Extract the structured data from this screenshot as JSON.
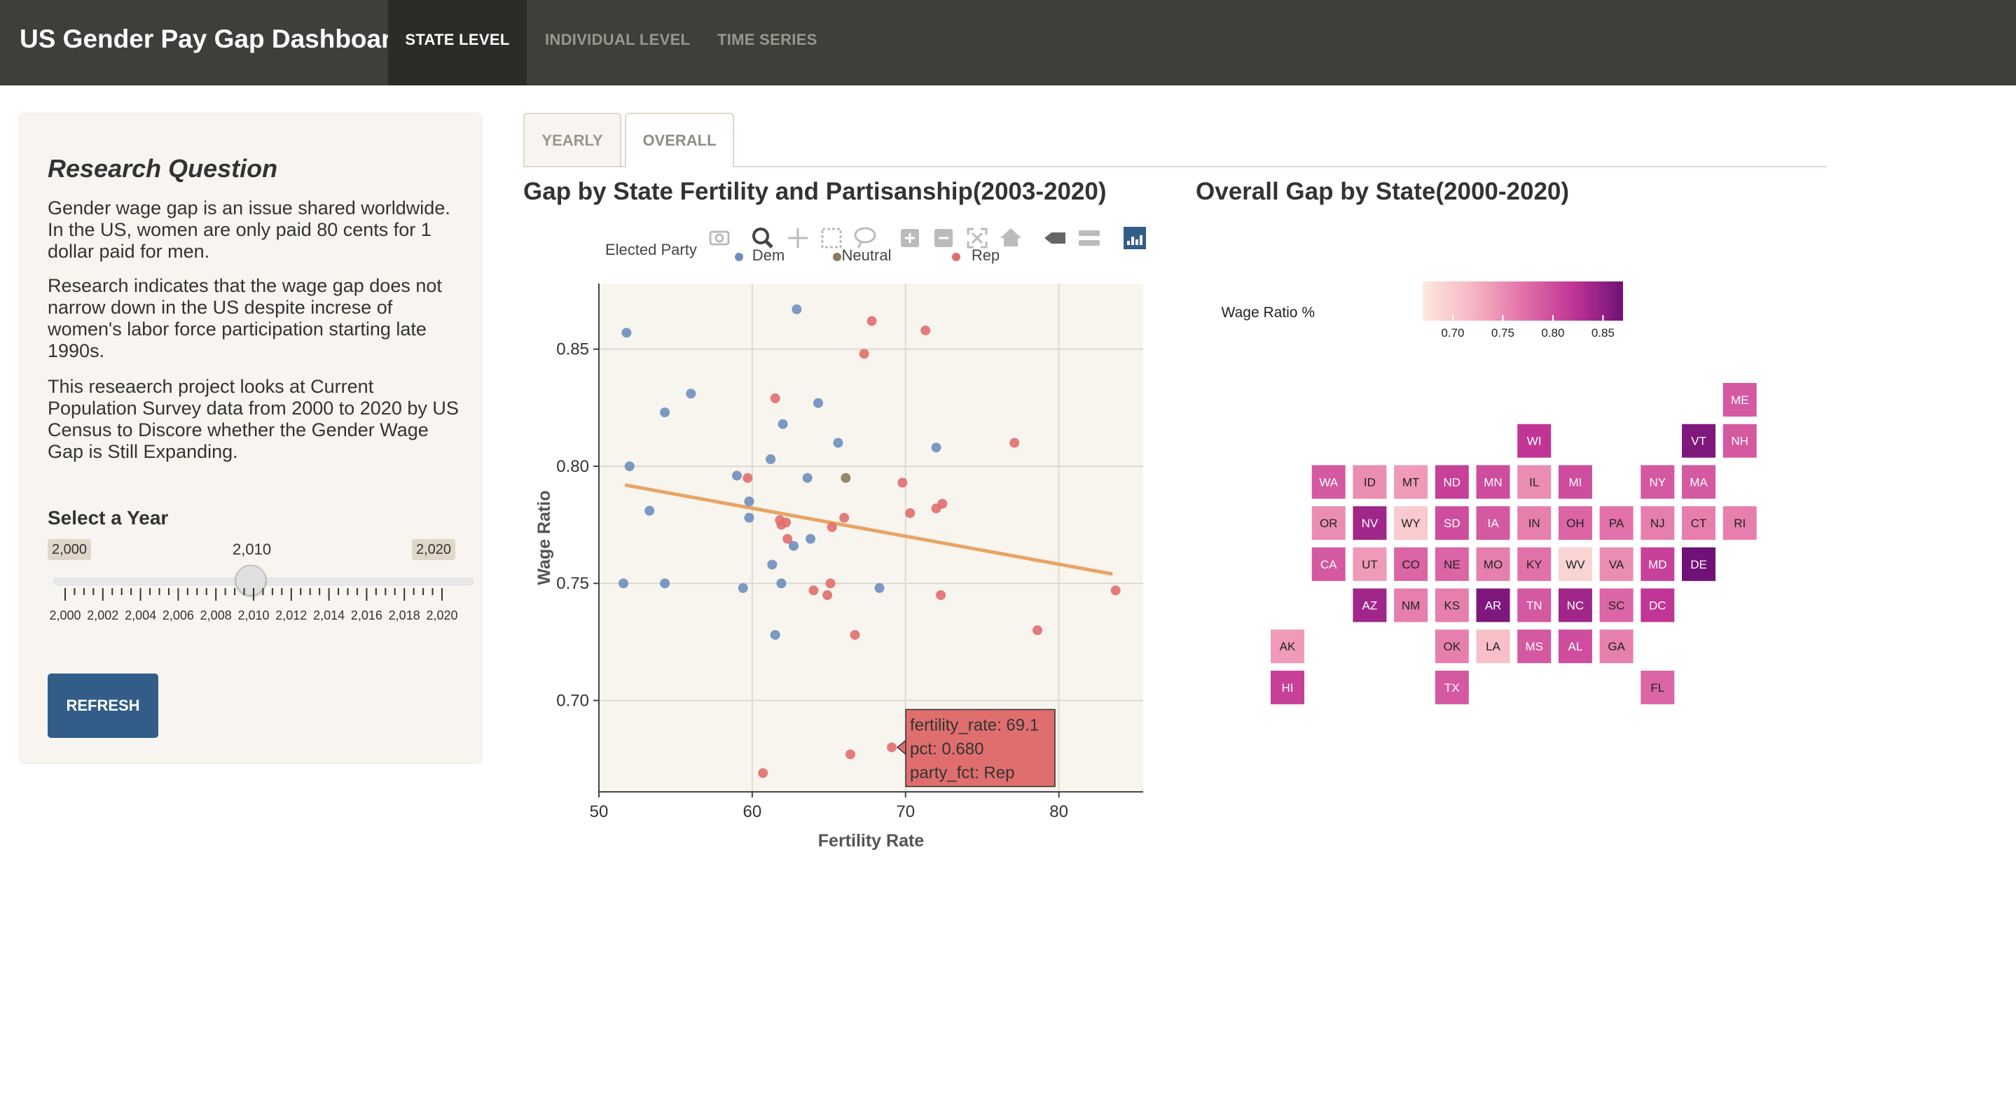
{
  "app": {
    "title": "US Gender Pay Gap Dashboard",
    "nav": [
      "STATE LEVEL",
      "INDIVIDUAL LEVEL",
      "TIME SERIES"
    ],
    "active_nav": "STATE LEVEL"
  },
  "sidebar": {
    "title": "Research Question",
    "paragraphs": [
      "Gender wage gap is an issue shared worldwide. In the US, women are only paid 80 cents for 1 dollar paid for men.",
      "Research indicates that the wage gap does not narrow down in the US despite increse of women's labor force participation starting late 1990s.",
      "This reseaerch project looks at Current Population Survey data from 2000 to 2020 by US Census to Discore whether the Gender Wage Gap is Still Expanding."
    ],
    "year_label": "Select a Year",
    "slider": {
      "min_label": "2,000",
      "max_label": "2,020",
      "value_label": "2,010",
      "min": 2000,
      "max": 2020,
      "value": 2010,
      "tick_labels": [
        "2,000",
        "2,002",
        "2,004",
        "2,006",
        "2,008",
        "2,010",
        "2,012",
        "2,014",
        "2,016",
        "2,018",
        "2,020"
      ]
    },
    "refresh_label": "REFRESH"
  },
  "tabs": [
    "YEARLY",
    "OVERALL"
  ],
  "active_tab": "OVERALL",
  "colors": {
    "Dem": "#6d8fbd",
    "Neutral": "#8b7a5e",
    "Rep": "#e06e6e",
    "trend": "#e8a465",
    "plot_bg": "#f7f5ee",
    "accent": "#325d88"
  },
  "chart_data": [
    {
      "type": "scatter",
      "title": "Gap by State Fertility and Partisanship(2003-2020)",
      "xlabel": "Fertility Rate",
      "ylabel": "Wage Ratio",
      "xlim": [
        50,
        85.5
      ],
      "ylim": [
        0.661,
        0.878
      ],
      "xticks": [
        50,
        60,
        70,
        80
      ],
      "yticks": [
        0.7,
        0.75,
        0.8,
        0.85
      ],
      "ytick_labels": [
        "0.70",
        "0.75",
        "0.80",
        "0.85"
      ],
      "grid": true,
      "legend_title": "Elected Party",
      "legend": [
        "Dem",
        "Neutral",
        "Rep"
      ],
      "trend_line": [
        [
          51.7,
          0.792
        ],
        [
          83.5,
          0.754
        ]
      ],
      "series": [
        {
          "name": "Dem",
          "points": [
            [
              51.8,
              0.857
            ],
            [
              52.0,
              0.8
            ],
            [
              53.3,
              0.781
            ],
            [
              54.3,
              0.823
            ],
            [
              54.3,
              0.75
            ],
            [
              56.0,
              0.831
            ],
            [
              51.6,
              0.75
            ],
            [
              59.0,
              0.796
            ],
            [
              59.8,
              0.785
            ],
            [
              59.8,
              0.778
            ],
            [
              59.4,
              0.748
            ],
            [
              61.2,
              0.803
            ],
            [
              62.0,
              0.818
            ],
            [
              62.9,
              0.867
            ],
            [
              64.3,
              0.827
            ],
            [
              65.6,
              0.81
            ],
            [
              63.6,
              0.795
            ],
            [
              61.3,
              0.758
            ],
            [
              61.9,
              0.75
            ],
            [
              62.7,
              0.766
            ],
            [
              63.8,
              0.769
            ],
            [
              61.5,
              0.728
            ],
            [
              68.3,
              0.748
            ],
            [
              72.0,
              0.808
            ]
          ]
        },
        {
          "name": "Neutral",
          "points": [
            [
              66.1,
              0.795
            ]
          ]
        },
        {
          "name": "Rep",
          "points": [
            [
              59.7,
              0.795
            ],
            [
              61.5,
              0.829
            ],
            [
              61.8,
              0.777
            ],
            [
              61.9,
              0.775
            ],
            [
              62.2,
              0.776
            ],
            [
              62.3,
              0.769
            ],
            [
              65.2,
              0.774
            ],
            [
              66.0,
              0.778
            ],
            [
              67.3,
              0.848
            ],
            [
              67.8,
              0.862
            ],
            [
              69.8,
              0.793
            ],
            [
              70.3,
              0.78
            ],
            [
              71.3,
              0.858
            ],
            [
              72.0,
              0.782
            ],
            [
              72.4,
              0.784
            ],
            [
              77.1,
              0.81
            ],
            [
              64.0,
              0.747
            ],
            [
              64.9,
              0.745
            ],
            [
              65.1,
              0.75
            ],
            [
              66.7,
              0.728
            ],
            [
              72.3,
              0.745
            ],
            [
              78.6,
              0.73
            ],
            [
              83.7,
              0.747
            ],
            [
              60.7,
              0.669
            ],
            [
              66.4,
              0.677
            ],
            [
              69.1,
              0.68
            ]
          ]
        }
      ],
      "tooltip": [
        "fertility_rate: 69.1",
        "pct: 0.680",
        "party_fct: Rep"
      ]
    },
    {
      "type": "heatmap",
      "title": "Overall Gap by State(2000-2020)",
      "legend_title": "Wage Ratio %",
      "colorbar_ticks": [
        "0.70",
        "0.75",
        "0.80",
        "0.85"
      ],
      "colorbar_range": [
        0.67,
        0.87
      ],
      "states": [
        {
          "abbr": "ME",
          "col": 11,
          "row": 0,
          "v": 0.79
        },
        {
          "abbr": "WI",
          "col": 6,
          "row": 1,
          "v": 0.82
        },
        {
          "abbr": "VT",
          "col": 10,
          "row": 1,
          "v": 0.86
        },
        {
          "abbr": "NH",
          "col": 11,
          "row": 1,
          "v": 0.79
        },
        {
          "abbr": "WA",
          "col": 1,
          "row": 2,
          "v": 0.79
        },
        {
          "abbr": "ID",
          "col": 2,
          "row": 2,
          "v": 0.75
        },
        {
          "abbr": "MT",
          "col": 3,
          "row": 2,
          "v": 0.74
        },
        {
          "abbr": "ND",
          "col": 4,
          "row": 2,
          "v": 0.81
        },
        {
          "abbr": "MN",
          "col": 5,
          "row": 2,
          "v": 0.8
        },
        {
          "abbr": "IL",
          "col": 6,
          "row": 2,
          "v": 0.75
        },
        {
          "abbr": "MI",
          "col": 7,
          "row": 2,
          "v": 0.8
        },
        {
          "abbr": "NY",
          "col": 9,
          "row": 2,
          "v": 0.79
        },
        {
          "abbr": "MA",
          "col": 10,
          "row": 2,
          "v": 0.79
        },
        {
          "abbr": "OR",
          "col": 1,
          "row": 3,
          "v": 0.75
        },
        {
          "abbr": "NV",
          "col": 2,
          "row": 3,
          "v": 0.84
        },
        {
          "abbr": "WY",
          "col": 3,
          "row": 3,
          "v": 0.7
        },
        {
          "abbr": "SD",
          "col": 4,
          "row": 3,
          "v": 0.8
        },
        {
          "abbr": "IA",
          "col": 5,
          "row": 3,
          "v": 0.79
        },
        {
          "abbr": "IN",
          "col": 6,
          "row": 3,
          "v": 0.76
        },
        {
          "abbr": "OH",
          "col": 7,
          "row": 3,
          "v": 0.78
        },
        {
          "abbr": "PA",
          "col": 8,
          "row": 3,
          "v": 0.77
        },
        {
          "abbr": "NJ",
          "col": 9,
          "row": 3,
          "v": 0.76
        },
        {
          "abbr": "CT",
          "col": 10,
          "row": 3,
          "v": 0.76
        },
        {
          "abbr": "RI",
          "col": 11,
          "row": 3,
          "v": 0.76
        },
        {
          "abbr": "CA",
          "col": 1,
          "row": 4,
          "v": 0.79
        },
        {
          "abbr": "UT",
          "col": 2,
          "row": 4,
          "v": 0.74
        },
        {
          "abbr": "CO",
          "col": 3,
          "row": 4,
          "v": 0.78
        },
        {
          "abbr": "NE",
          "col": 4,
          "row": 4,
          "v": 0.78
        },
        {
          "abbr": "MO",
          "col": 5,
          "row": 4,
          "v": 0.76
        },
        {
          "abbr": "KY",
          "col": 6,
          "row": 4,
          "v": 0.77
        },
        {
          "abbr": "WV",
          "col": 7,
          "row": 4,
          "v": 0.69
        },
        {
          "abbr": "VA",
          "col": 8,
          "row": 4,
          "v": 0.75
        },
        {
          "abbr": "MD",
          "col": 9,
          "row": 4,
          "v": 0.81
        },
        {
          "abbr": "DE",
          "col": 10,
          "row": 4,
          "v": 0.87
        },
        {
          "abbr": "AZ",
          "col": 2,
          "row": 5,
          "v": 0.84
        },
        {
          "abbr": "NM",
          "col": 3,
          "row": 5,
          "v": 0.76
        },
        {
          "abbr": "KS",
          "col": 4,
          "row": 5,
          "v": 0.76
        },
        {
          "abbr": "AR",
          "col": 5,
          "row": 5,
          "v": 0.86
        },
        {
          "abbr": "TN",
          "col": 6,
          "row": 5,
          "v": 0.79
        },
        {
          "abbr": "NC",
          "col": 7,
          "row": 5,
          "v": 0.84
        },
        {
          "abbr": "SC",
          "col": 8,
          "row": 5,
          "v": 0.78
        },
        {
          "abbr": "DC",
          "col": 9,
          "row": 5,
          "v": 0.82
        },
        {
          "abbr": "AK",
          "col": 0,
          "row": 6,
          "v": 0.74
        },
        {
          "abbr": "OK",
          "col": 4,
          "row": 6,
          "v": 0.76
        },
        {
          "abbr": "LA",
          "col": 5,
          "row": 6,
          "v": 0.71
        },
        {
          "abbr": "MS",
          "col": 6,
          "row": 6,
          "v": 0.79
        },
        {
          "abbr": "AL",
          "col": 7,
          "row": 6,
          "v": 0.8
        },
        {
          "abbr": "GA",
          "col": 8,
          "row": 6,
          "v": 0.76
        },
        {
          "abbr": "HI",
          "col": 0,
          "row": 7,
          "v": 0.81
        },
        {
          "abbr": "TX",
          "col": 4,
          "row": 7,
          "v": 0.79
        },
        {
          "abbr": "FL",
          "col": 9,
          "row": 7,
          "v": 0.78
        }
      ]
    }
  ],
  "modebar_icons": [
    "camera-icon",
    "zoom-icon",
    "pan-icon",
    "box-select-icon",
    "lasso-icon",
    "zoom-in-icon",
    "zoom-out-icon",
    "autoscale-icon",
    "reset-axes-icon",
    "spike-lines-icon",
    "compare-hover-icon",
    "plotly-logo-icon"
  ]
}
